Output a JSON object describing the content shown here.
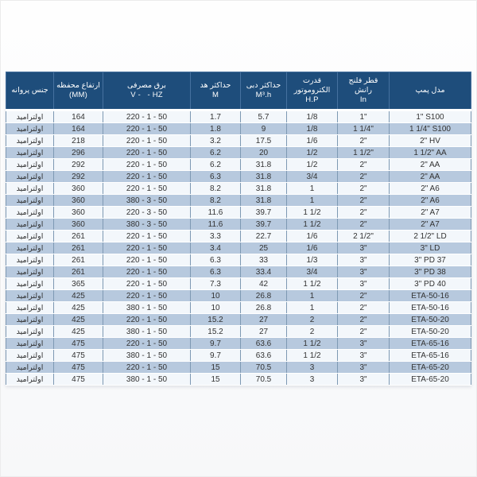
{
  "page": {
    "background": "#ffffff",
    "description_colors": {
      "header_bg": "#1e4d7b",
      "header_text": "#ffffff",
      "row_alt_blue": "#b7c9de",
      "row_light": "#f3f7fb",
      "grid_line": "#7e99b3"
    }
  },
  "table": {
    "direction": "rtl",
    "columns": [
      {
        "key": "model",
        "fa": "مدل پمپ",
        "unit": ""
      },
      {
        "key": "flange",
        "fa": "قطر فلنج رانش",
        "unit": "In"
      },
      {
        "key": "motor-power",
        "fa": "قدرت الکتروموتور",
        "unit": "H.P"
      },
      {
        "key": "max-flow",
        "fa": "حداکثر دبی",
        "unit": "M³.h"
      },
      {
        "key": "max-head",
        "fa": "حداکثر هد",
        "unit": "M"
      },
      {
        "key": "electricity",
        "fa": "برق مصرفی",
        "unit": "V -   - HZ"
      },
      {
        "key": "chamber-height",
        "fa": "ارتفاع محفظه",
        "unit": "(MM)"
      },
      {
        "key": "impeller",
        "fa": "جنس پروانه",
        "unit": ""
      }
    ],
    "rows": [
      [
        "1\" S100",
        "1\"",
        "1/8",
        "5.7",
        "1.7",
        "220 - 1 - 50",
        "164",
        "اولترامید"
      ],
      [
        "1 1/4\" S100",
        "1 1/4\"",
        "1/8",
        "9",
        "1.8",
        "220 - 1 - 50",
        "164",
        "اولترامید"
      ],
      [
        "2\" HV",
        "2\"",
        "1/6",
        "17.5",
        "3.2",
        "220 - 1 - 50",
        "218",
        "اولترامید"
      ],
      [
        "1 1/2\" AA",
        "1 1/2\"",
        "1/2",
        "20",
        "6.2",
        "220 - 1 - 50",
        "296",
        "اولترامید"
      ],
      [
        "2\" AA",
        "2\"",
        "1/2",
        "31.8",
        "6.2",
        "220 - 1 - 50",
        "292",
        "اولترامید"
      ],
      [
        "2\" AA",
        "2\"",
        "3/4",
        "31.8",
        "6.3",
        "220 - 1 - 50",
        "292",
        "اولترامید"
      ],
      [
        "2\" A6",
        "2\"",
        "1",
        "31.8",
        "8.2",
        "220 - 1 - 50",
        "360",
        "اولترامید"
      ],
      [
        "2\" A6",
        "2\"",
        "1",
        "31.8",
        "8.2",
        "380 - 3 - 50",
        "360",
        "اولترامید"
      ],
      [
        "2\" A7",
        "2\"",
        "1 1/2",
        "39.7",
        "11.6",
        "220 - 3 - 50",
        "360",
        "اولترامید"
      ],
      [
        "2\" A7",
        "2\"",
        "1 1/2",
        "39.7",
        "11.6",
        "380 - 3 - 50",
        "360",
        "اولترامید"
      ],
      [
        "2 1/2\" LD",
        "2 1/2\"",
        "1/6",
        "22.7",
        "3.3",
        "220 - 1 - 50",
        "261",
        "اولترامید"
      ],
      [
        "3\" LD",
        "3\"",
        "1/6",
        "25",
        "3.4",
        "220 - 1 - 50",
        "261",
        "اولترامید"
      ],
      [
        "3\" PD 37",
        "3\"",
        "1/3",
        "33",
        "6.3",
        "220 - 1 - 50",
        "261",
        "اولترامید"
      ],
      [
        "3\" PD 38",
        "3\"",
        "3/4",
        "33.4",
        "6.3",
        "220 - 1 - 50",
        "261",
        "اولترامید"
      ],
      [
        "3\" PD 40",
        "3\"",
        "1 1/2",
        "42",
        "7.3",
        "220 - 1 - 50",
        "365",
        "اولترامید"
      ],
      [
        "ETA-50-16",
        "2\"",
        "1",
        "26.8",
        "10",
        "220 - 1 - 50",
        "425",
        "اولترامید"
      ],
      [
        "ETA-50-16",
        "2\"",
        "1",
        "26.8",
        "10",
        "380 - 1 - 50",
        "425",
        "اولترامید"
      ],
      [
        "ETA-50-20",
        "2\"",
        "2",
        "27",
        "15.2",
        "220 - 1 - 50",
        "425",
        "اولترامید"
      ],
      [
        "ETA-50-20",
        "2\"",
        "2",
        "27",
        "15.2",
        "380 - 1 - 50",
        "425",
        "اولترامید"
      ],
      [
        "ETA-65-16",
        "3\"",
        "1 1/2",
        "63.6",
        "9.7",
        "220 - 1 - 50",
        "475",
        "اولترامید"
      ],
      [
        "ETA-65-16",
        "3\"",
        "1 1/2",
        "63.6",
        "9.7",
        "380 - 1 - 50",
        "475",
        "اولترامید"
      ],
      [
        "ETA-65-20",
        "3\"",
        "3",
        "70.5",
        "15",
        "220 - 1 - 50",
        "475",
        "اولترامید"
      ],
      [
        "ETA-65-20",
        "3\"",
        "3",
        "70.5",
        "15",
        "380 - 1 - 50",
        "475",
        "اولترامید"
      ]
    ]
  }
}
